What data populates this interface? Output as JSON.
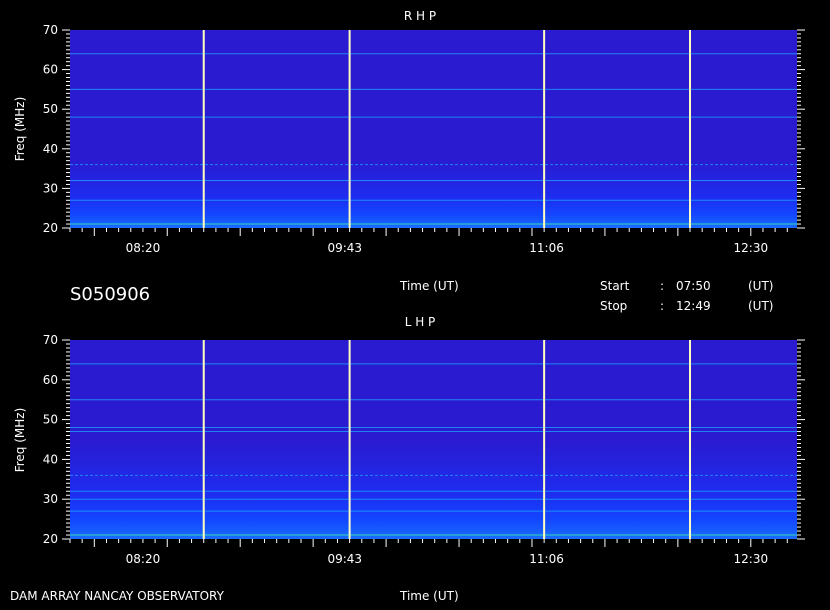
{
  "chart_data": {
    "type": "heatmap",
    "description_free": true,
    "title_id": "S050906",
    "time_axis_label": "Time (UT)",
    "freq_axis_label": "Freq (MHz)",
    "x_ticks": [
      "08:20",
      "09:43",
      "11:06",
      "12:30"
    ],
    "y_ticks": [
      20,
      30,
      40,
      50,
      60,
      70
    ],
    "ylim": [
      20,
      70
    ],
    "xlim": [
      "07:50",
      "12:49"
    ],
    "start": {
      "label": "Start",
      "sep": ":",
      "value": "07:50",
      "unit": "(UT)"
    },
    "stop": {
      "label": "Stop",
      "sep": ":",
      "value": "12:49",
      "unit": "(UT)"
    },
    "panels": [
      {
        "name": "R H P",
        "markers": [
          "08:45",
          "09:45",
          "11:05",
          "12:05"
        ],
        "persistent_lines_mhz": [
          21,
          27,
          32,
          36,
          48,
          55,
          64
        ]
      },
      {
        "name": "L H P",
        "markers": [
          "08:45",
          "09:45",
          "11:05",
          "12:05"
        ],
        "persistent_lines_mhz": [
          21,
          27,
          30,
          32,
          36,
          47,
          48,
          55,
          64
        ]
      }
    ],
    "colors": {
      "background": "#2a1bd0",
      "low": "#0a33ff",
      "mid": "#1fa6ff",
      "high": "#3cff9a",
      "marker": "#ffffc0"
    }
  },
  "footer": {
    "left": "DAM ARRAY  NANCAY OBSERVATORY"
  }
}
